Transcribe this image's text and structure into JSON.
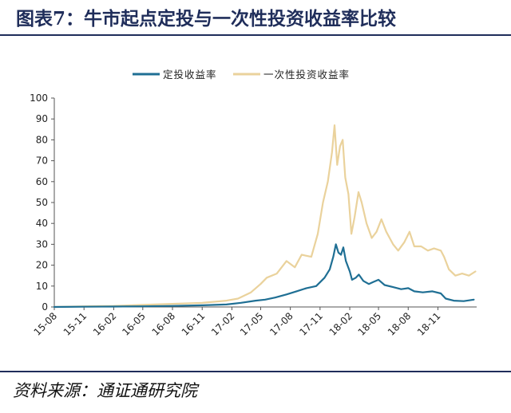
{
  "title": "图表7：牛市起点定投与一次性投资收益率比较",
  "source": "资料来源：通证通研究院",
  "colors": {
    "rule": "#1f2d5a",
    "series_dca": "#1f6f94",
    "series_lump": "#ead29c"
  },
  "chart_data": {
    "type": "line",
    "title": "",
    "xlabel": "",
    "ylabel": "",
    "ylim": [
      0,
      100
    ],
    "yticks": [
      0,
      10,
      20,
      30,
      40,
      50,
      60,
      70,
      80,
      90,
      100
    ],
    "xlim": [
      "2015-08",
      "2019-03"
    ],
    "xtick_labels": [
      "15-08",
      "15-11",
      "16-02",
      "16-05",
      "16-08",
      "16-11",
      "17-02",
      "17-05",
      "17-08",
      "17-11",
      "18-02",
      "18-05",
      "18-08",
      "18-11"
    ],
    "xtick_dates": [
      "2015-08",
      "2015-11",
      "2016-02",
      "2016-05",
      "2016-08",
      "2016-11",
      "2017-02",
      "2017-05",
      "2017-08",
      "2017-11",
      "2018-02",
      "2018-05",
      "2018-08",
      "2018-11"
    ],
    "grid": false,
    "legend_position": "top",
    "series": [
      {
        "name": "定投收益率",
        "color": "#1f6f94",
        "points": [
          [
            "2015-08-01",
            0.0
          ],
          [
            "2015-11-01",
            0.1
          ],
          [
            "2016-02-01",
            0.2
          ],
          [
            "2016-05-01",
            0.3
          ],
          [
            "2016-08-01",
            0.5
          ],
          [
            "2016-11-01",
            0.8
          ],
          [
            "2017-01-15",
            1.2
          ],
          [
            "2017-03-01",
            2.0
          ],
          [
            "2017-04-15",
            3.0
          ],
          [
            "2017-05-15",
            3.5
          ],
          [
            "2017-06-15",
            4.5
          ],
          [
            "2017-07-20",
            6.0
          ],
          [
            "2017-08-20",
            7.5
          ],
          [
            "2017-09-20",
            9.0
          ],
          [
            "2017-10-20",
            10.0
          ],
          [
            "2017-11-15",
            14.0
          ],
          [
            "2017-12-01",
            18.0
          ],
          [
            "2017-12-12",
            24.0
          ],
          [
            "2017-12-20",
            30.0
          ],
          [
            "2017-12-28",
            26.0
          ],
          [
            "2018-01-05",
            25.0
          ],
          [
            "2018-01-12",
            28.5
          ],
          [
            "2018-01-20",
            22.0
          ],
          [
            "2018-02-01",
            17.0
          ],
          [
            "2018-02-08",
            13.0
          ],
          [
            "2018-02-20",
            14.0
          ],
          [
            "2018-03-01",
            15.5
          ],
          [
            "2018-03-15",
            12.5
          ],
          [
            "2018-04-01",
            11.0
          ],
          [
            "2018-04-15",
            12.0
          ],
          [
            "2018-05-01",
            13.0
          ],
          [
            "2018-05-20",
            10.5
          ],
          [
            "2018-06-15",
            9.5
          ],
          [
            "2018-07-10",
            8.5
          ],
          [
            "2018-08-01",
            9.0
          ],
          [
            "2018-08-20",
            7.5
          ],
          [
            "2018-09-15",
            7.0
          ],
          [
            "2018-10-15",
            7.5
          ],
          [
            "2018-11-10",
            6.5
          ],
          [
            "2018-11-25",
            4.0
          ],
          [
            "2018-12-20",
            3.0
          ],
          [
            "2019-01-20",
            2.8
          ],
          [
            "2019-02-20",
            3.5
          ]
        ]
      },
      {
        "name": "一次性投资收益率",
        "color": "#ead29c",
        "points": [
          [
            "2015-08-01",
            0.0
          ],
          [
            "2015-11-01",
            0.3
          ],
          [
            "2016-02-01",
            0.5
          ],
          [
            "2016-05-01",
            1.0
          ],
          [
            "2016-08-01",
            1.5
          ],
          [
            "2016-11-01",
            2.0
          ],
          [
            "2017-01-15",
            3.0
          ],
          [
            "2017-02-20",
            4.0
          ],
          [
            "2017-04-01",
            7.0
          ],
          [
            "2017-05-01",
            11.0
          ],
          [
            "2017-05-20",
            14.0
          ],
          [
            "2017-06-20",
            16.0
          ],
          [
            "2017-07-20",
            22.0
          ],
          [
            "2017-08-15",
            19.0
          ],
          [
            "2017-09-05",
            25.0
          ],
          [
            "2017-10-05",
            24.0
          ],
          [
            "2017-10-25",
            35.0
          ],
          [
            "2017-11-10",
            50.0
          ],
          [
            "2017-11-25",
            60.0
          ],
          [
            "2017-12-08",
            74.0
          ],
          [
            "2017-12-16",
            87.0
          ],
          [
            "2017-12-24",
            68.0
          ],
          [
            "2018-01-02",
            77.0
          ],
          [
            "2018-01-10",
            80.0
          ],
          [
            "2018-01-18",
            62.0
          ],
          [
            "2018-01-28",
            54.0
          ],
          [
            "2018-02-06",
            35.0
          ],
          [
            "2018-02-16",
            43.0
          ],
          [
            "2018-02-28",
            55.0
          ],
          [
            "2018-03-10",
            50.0
          ],
          [
            "2018-03-25",
            40.0
          ],
          [
            "2018-04-10",
            33.0
          ],
          [
            "2018-04-25",
            36.0
          ],
          [
            "2018-05-10",
            42.0
          ],
          [
            "2018-05-25",
            36.0
          ],
          [
            "2018-06-15",
            30.0
          ],
          [
            "2018-07-01",
            27.0
          ],
          [
            "2018-07-20",
            31.0
          ],
          [
            "2018-08-05",
            36.0
          ],
          [
            "2018-08-20",
            29.0
          ],
          [
            "2018-09-10",
            29.0
          ],
          [
            "2018-10-01",
            27.0
          ],
          [
            "2018-10-20",
            28.0
          ],
          [
            "2018-11-10",
            27.0
          ],
          [
            "2018-11-20",
            24.0
          ],
          [
            "2018-12-05",
            18.0
          ],
          [
            "2018-12-25",
            15.0
          ],
          [
            "2019-01-15",
            16.0
          ],
          [
            "2019-02-05",
            15.0
          ],
          [
            "2019-02-25",
            17.0
          ]
        ]
      }
    ]
  }
}
